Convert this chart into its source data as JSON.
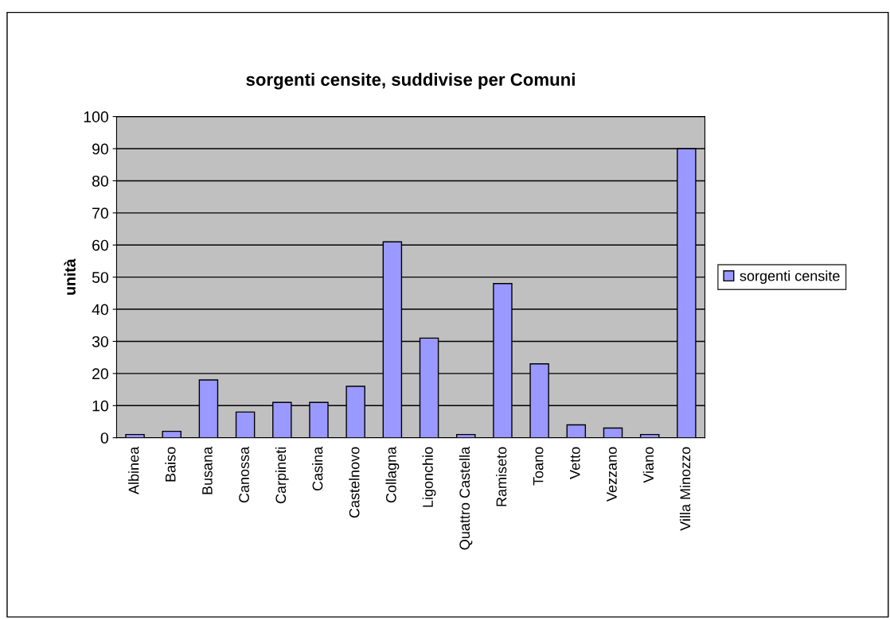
{
  "chart_data": {
    "type": "bar",
    "title": "sorgenti censite, suddivise per Comuni",
    "ylabel": "unità",
    "categories": [
      "Albinea",
      "Baiso",
      "Busana",
      "Canossa",
      "Carpineti",
      "Casina",
      "Castelnovo",
      "Collagna",
      "Ligonchio",
      "Quattro Castella",
      "Ramiseto",
      "Toano",
      "Vetto",
      "Vezzano",
      "Viano",
      "Villa Minozzo"
    ],
    "series": [
      {
        "name": "sorgenti censite",
        "color": "#9999ff",
        "values": [
          1,
          2,
          18,
          8,
          11,
          11,
          16,
          61,
          31,
          1,
          48,
          23,
          4,
          3,
          1,
          90
        ]
      }
    ],
    "ylim": [
      0,
      100
    ],
    "yticks": [
      0,
      10,
      20,
      30,
      40,
      50,
      60,
      70,
      80,
      90,
      100
    ],
    "grid": "y",
    "legend": "right"
  }
}
